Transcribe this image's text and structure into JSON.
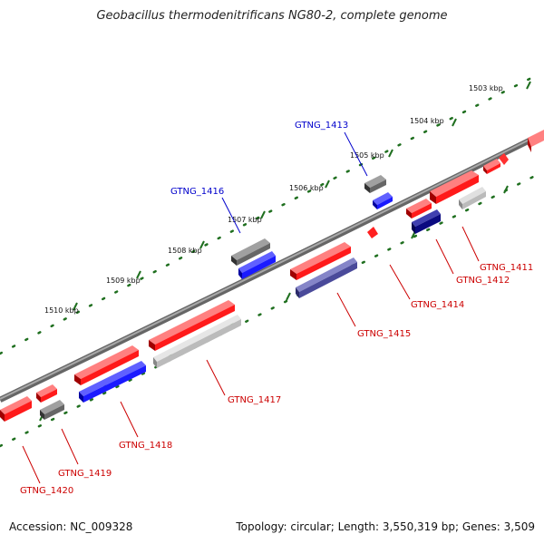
{
  "title": "Geobacillus thermodenitrificans NG80-2, complete genome",
  "footer": {
    "accession": "Accession: NC_009328",
    "topology": "Topology: circular; Length: 3,550,319 bp; Genes: 3,509"
  },
  "colors": {
    "backbone": "#808080",
    "forward_cds": "#ff1a1a",
    "reverse_cds": "#1a1aff",
    "forward_pseudo": "#666666",
    "reverse_pseudo": "#bbbbbb",
    "dark_blue": "#0a0a80",
    "slate_blue": "#4a4a9a",
    "tick_green": "#1f6f1f",
    "label_red": "#cc0000",
    "label_blue": "#0000cc"
  },
  "kbp_ticks": [
    {
      "label": "1503 kbp"
    },
    {
      "label": "1504 kbp"
    },
    {
      "label": "1505 kbp"
    },
    {
      "label": "1506 kbp"
    },
    {
      "label": "1507 kbp"
    },
    {
      "label": "1508 kbp"
    },
    {
      "label": "1509 kbp"
    },
    {
      "label": "1510 kbp"
    }
  ],
  "genes": [
    {
      "label": "GTNG_1411"
    },
    {
      "label": "GTNG_1412"
    },
    {
      "label": "GTNG_1413"
    },
    {
      "label": "GTNG_1414"
    },
    {
      "label": "GTNG_1415"
    },
    {
      "label": "GTNG_1416"
    },
    {
      "label": "GTNG_1417"
    },
    {
      "label": "GTNG_1418"
    },
    {
      "label": "GTNG_1419"
    },
    {
      "label": "GTNG_1420"
    }
  ]
}
